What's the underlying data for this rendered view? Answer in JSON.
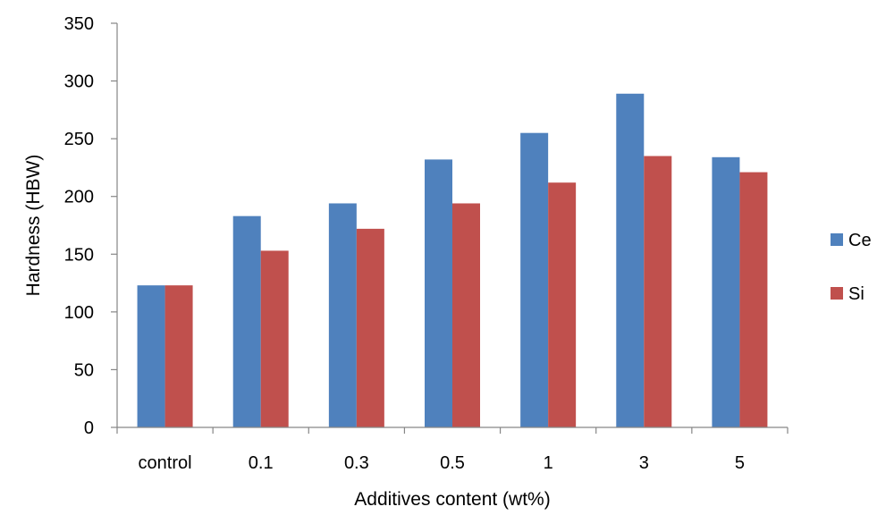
{
  "chart_data": {
    "type": "bar",
    "xlabel": "Additives content (wt%)",
    "ylabel": "Hardness (HBW)",
    "categories": [
      "control",
      "0.1",
      "0.3",
      "0.5",
      "1",
      "3",
      "5"
    ],
    "ylim": [
      0,
      350
    ],
    "yticks": [
      0,
      50,
      100,
      150,
      200,
      250,
      300,
      350
    ],
    "grid": false,
    "legend_position": "right",
    "series": [
      {
        "name": "Ce",
        "color": "#4F81BD",
        "values": [
          123,
          183,
          194,
          232,
          255,
          289,
          234
        ]
      },
      {
        "name": "Si",
        "color": "#C0504D",
        "values": [
          123,
          153,
          172,
          194,
          212,
          235,
          221
        ]
      }
    ]
  }
}
